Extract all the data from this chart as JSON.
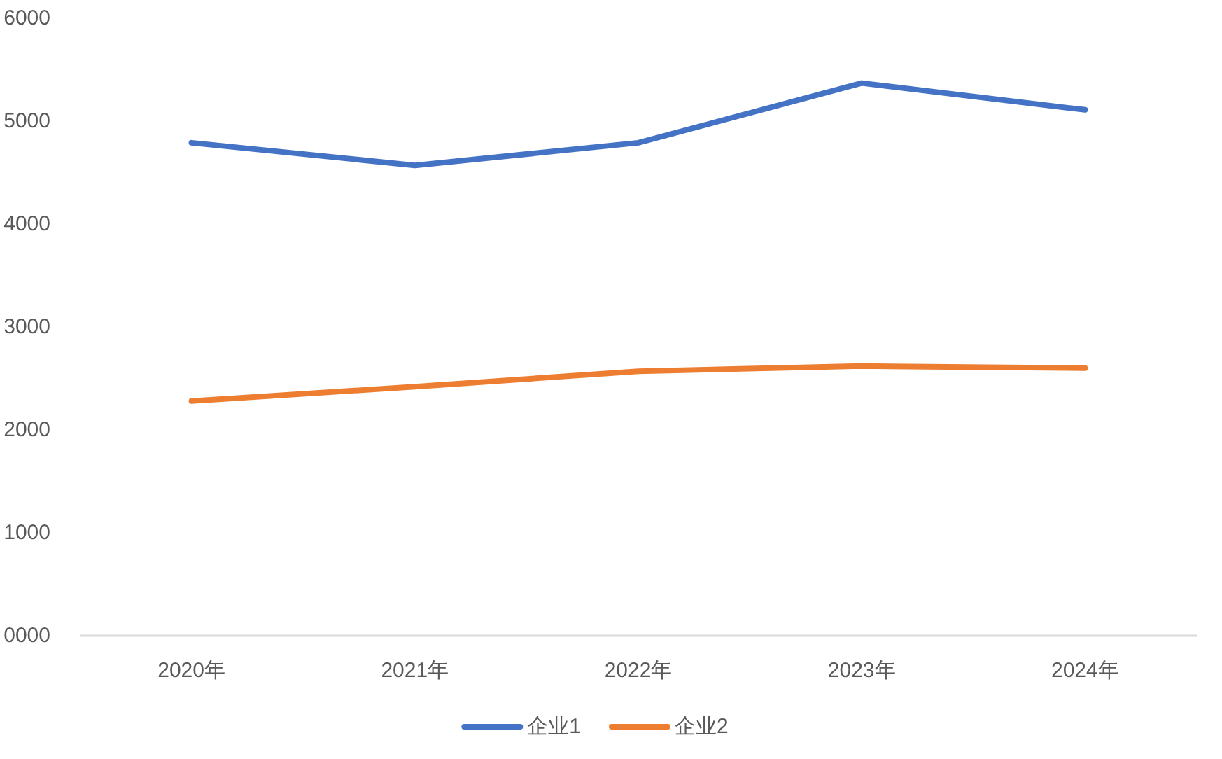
{
  "chart_data": {
    "type": "line",
    "categories": [
      "2020年",
      "2021年",
      "2022年",
      "2023年",
      "2024年"
    ],
    "series": [
      {
        "name": "企业1",
        "color": "#4472c4",
        "values": [
          4790,
          4570,
          4790,
          5370,
          5110
        ]
      },
      {
        "name": "企业2",
        "color": "#ed7d31",
        "values": [
          2280,
          2420,
          2570,
          2620,
          2600
        ]
      }
    ],
    "ylim": [
      0,
      6000
    ],
    "yticks": [
      {
        "value": 0,
        "label": "0000"
      },
      1000,
      2000,
      3000,
      4000,
      5000,
      6000
    ],
    "grid": false,
    "legend": "bottom",
    "line_style": "solid"
  }
}
